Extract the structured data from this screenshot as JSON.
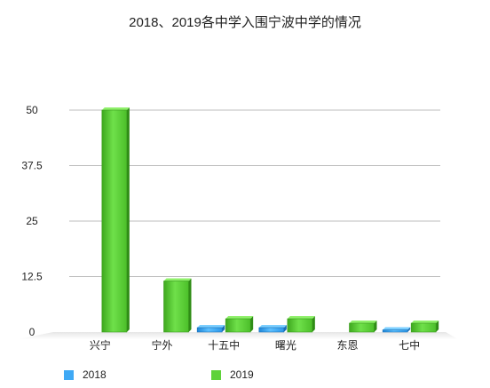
{
  "chart_data": {
    "type": "bar",
    "title": "2018、2019各中学入围宁波中学的情况",
    "categories": [
      "兴宁",
      "宁外",
      "十五中",
      "曙光",
      "东恩",
      "七中"
    ],
    "series": [
      {
        "name": "2018",
        "values": [
          0,
          0,
          1,
          1,
          0,
          0.5
        ],
        "color": "#3fa9f5"
      },
      {
        "name": "2019",
        "values": [
          50,
          11.5,
          3,
          3,
          2,
          2
        ],
        "color": "#5fd23a"
      }
    ],
    "yticks": [
      "0",
      "12.5",
      "25",
      "37.5",
      "50"
    ],
    "ylim": [
      0,
      50
    ],
    "grid": true,
    "legend_position": "bottom-left"
  }
}
